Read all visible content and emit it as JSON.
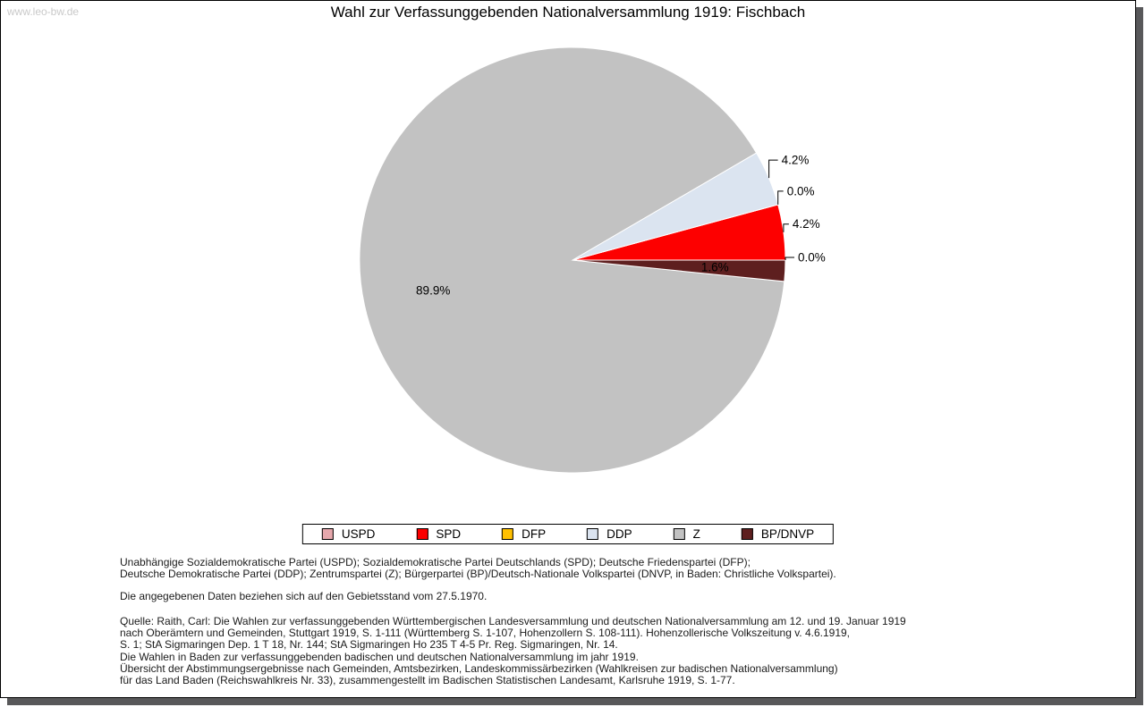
{
  "watermark": "www.leo-bw.de",
  "title": "Wahl zur Verfassunggebenden Nationalversammlung 1919: Fischbach",
  "chart_data": {
    "type": "pie",
    "title": "Wahl zur Verfassunggebenden Nationalversammlung 1919: Fischbach",
    "series": [
      {
        "name": "USPD",
        "value": 0.0,
        "label": "0.0%",
        "color": "#e7a8ad",
        "placement": "callout"
      },
      {
        "name": "SPD",
        "value": 4.2,
        "label": "4.2%",
        "color": "#fd0000",
        "placement": "callout"
      },
      {
        "name": "DFP",
        "value": 0.0,
        "label": "0.0%",
        "color": "#ffc000",
        "placement": "callout"
      },
      {
        "name": "DDP",
        "value": 4.2,
        "label": "4.2%",
        "color": "#dbe4f0",
        "placement": "callout"
      },
      {
        "name": "Z",
        "value": 89.9,
        "label": "89.9%",
        "color": "#c2c2c2",
        "placement": "inside"
      },
      {
        "name": "BP/DNVP",
        "value": 1.6,
        "label": "1.6%",
        "color": "#5e1f1f",
        "placement": "inside"
      }
    ],
    "start_angle_deg": 0,
    "direction": "counterclockwise",
    "legend_position": "bottom",
    "slice_separator_color": "#ffffff"
  },
  "footnotes": {
    "parties_line1": "Unabhängige Sozialdemokratische Partei (USPD); Sozialdemokratische Partei Deutschlands (SPD); Deutsche Friedenspartei (DFP);",
    "parties_line2": "Deutsche Demokratische Partei (DDP); Zentrumspartei (Z); Bürgerpartei (BP)/Deutsch-Nationale Volkspartei (DNVP, in Baden: Christliche Volkspartei).",
    "gebietsstand": "Die angegebenen Daten beziehen sich auf den Gebietsstand vom 27.5.1970.",
    "source_lines": [
      "Quelle: Raith, Carl: Die Wahlen zur verfassunggebenden Württembergischen Landesversammlung und deutschen Nationalversammlung am 12. und 19. Januar 1919",
      "nach Oberämtern und Gemeinden, Stuttgart 1919, S. 1-111 (Württemberg S. 1-107, Hohenzollern S. 108-111). Hohenzollerische Volkszeitung v. 4.6.1919,",
      "S. 1; StA Sigmaringen Dep. 1 T 18, Nr. 144; StA Sigmaringen Ho 235 T 4-5 Pr. Reg. Sigmaringen, Nr. 14.",
      "Die Wahlen in Baden zur verfassunggebenden badischen und deutschen Nationalversammlung im jahr 1919.",
      "Übersicht der Abstimmungsergebnisse nach Gemeinden, Amtsbezirken, Landeskommissärbezirken (Wahlkreisen zur badischen Nationalversammlung)",
      "für das Land Baden (Reichswahlkreis Nr. 33), zusammengestellt im Badischen Statistischen Landesamt, Karlsruhe 1919, S. 1-77."
    ]
  }
}
